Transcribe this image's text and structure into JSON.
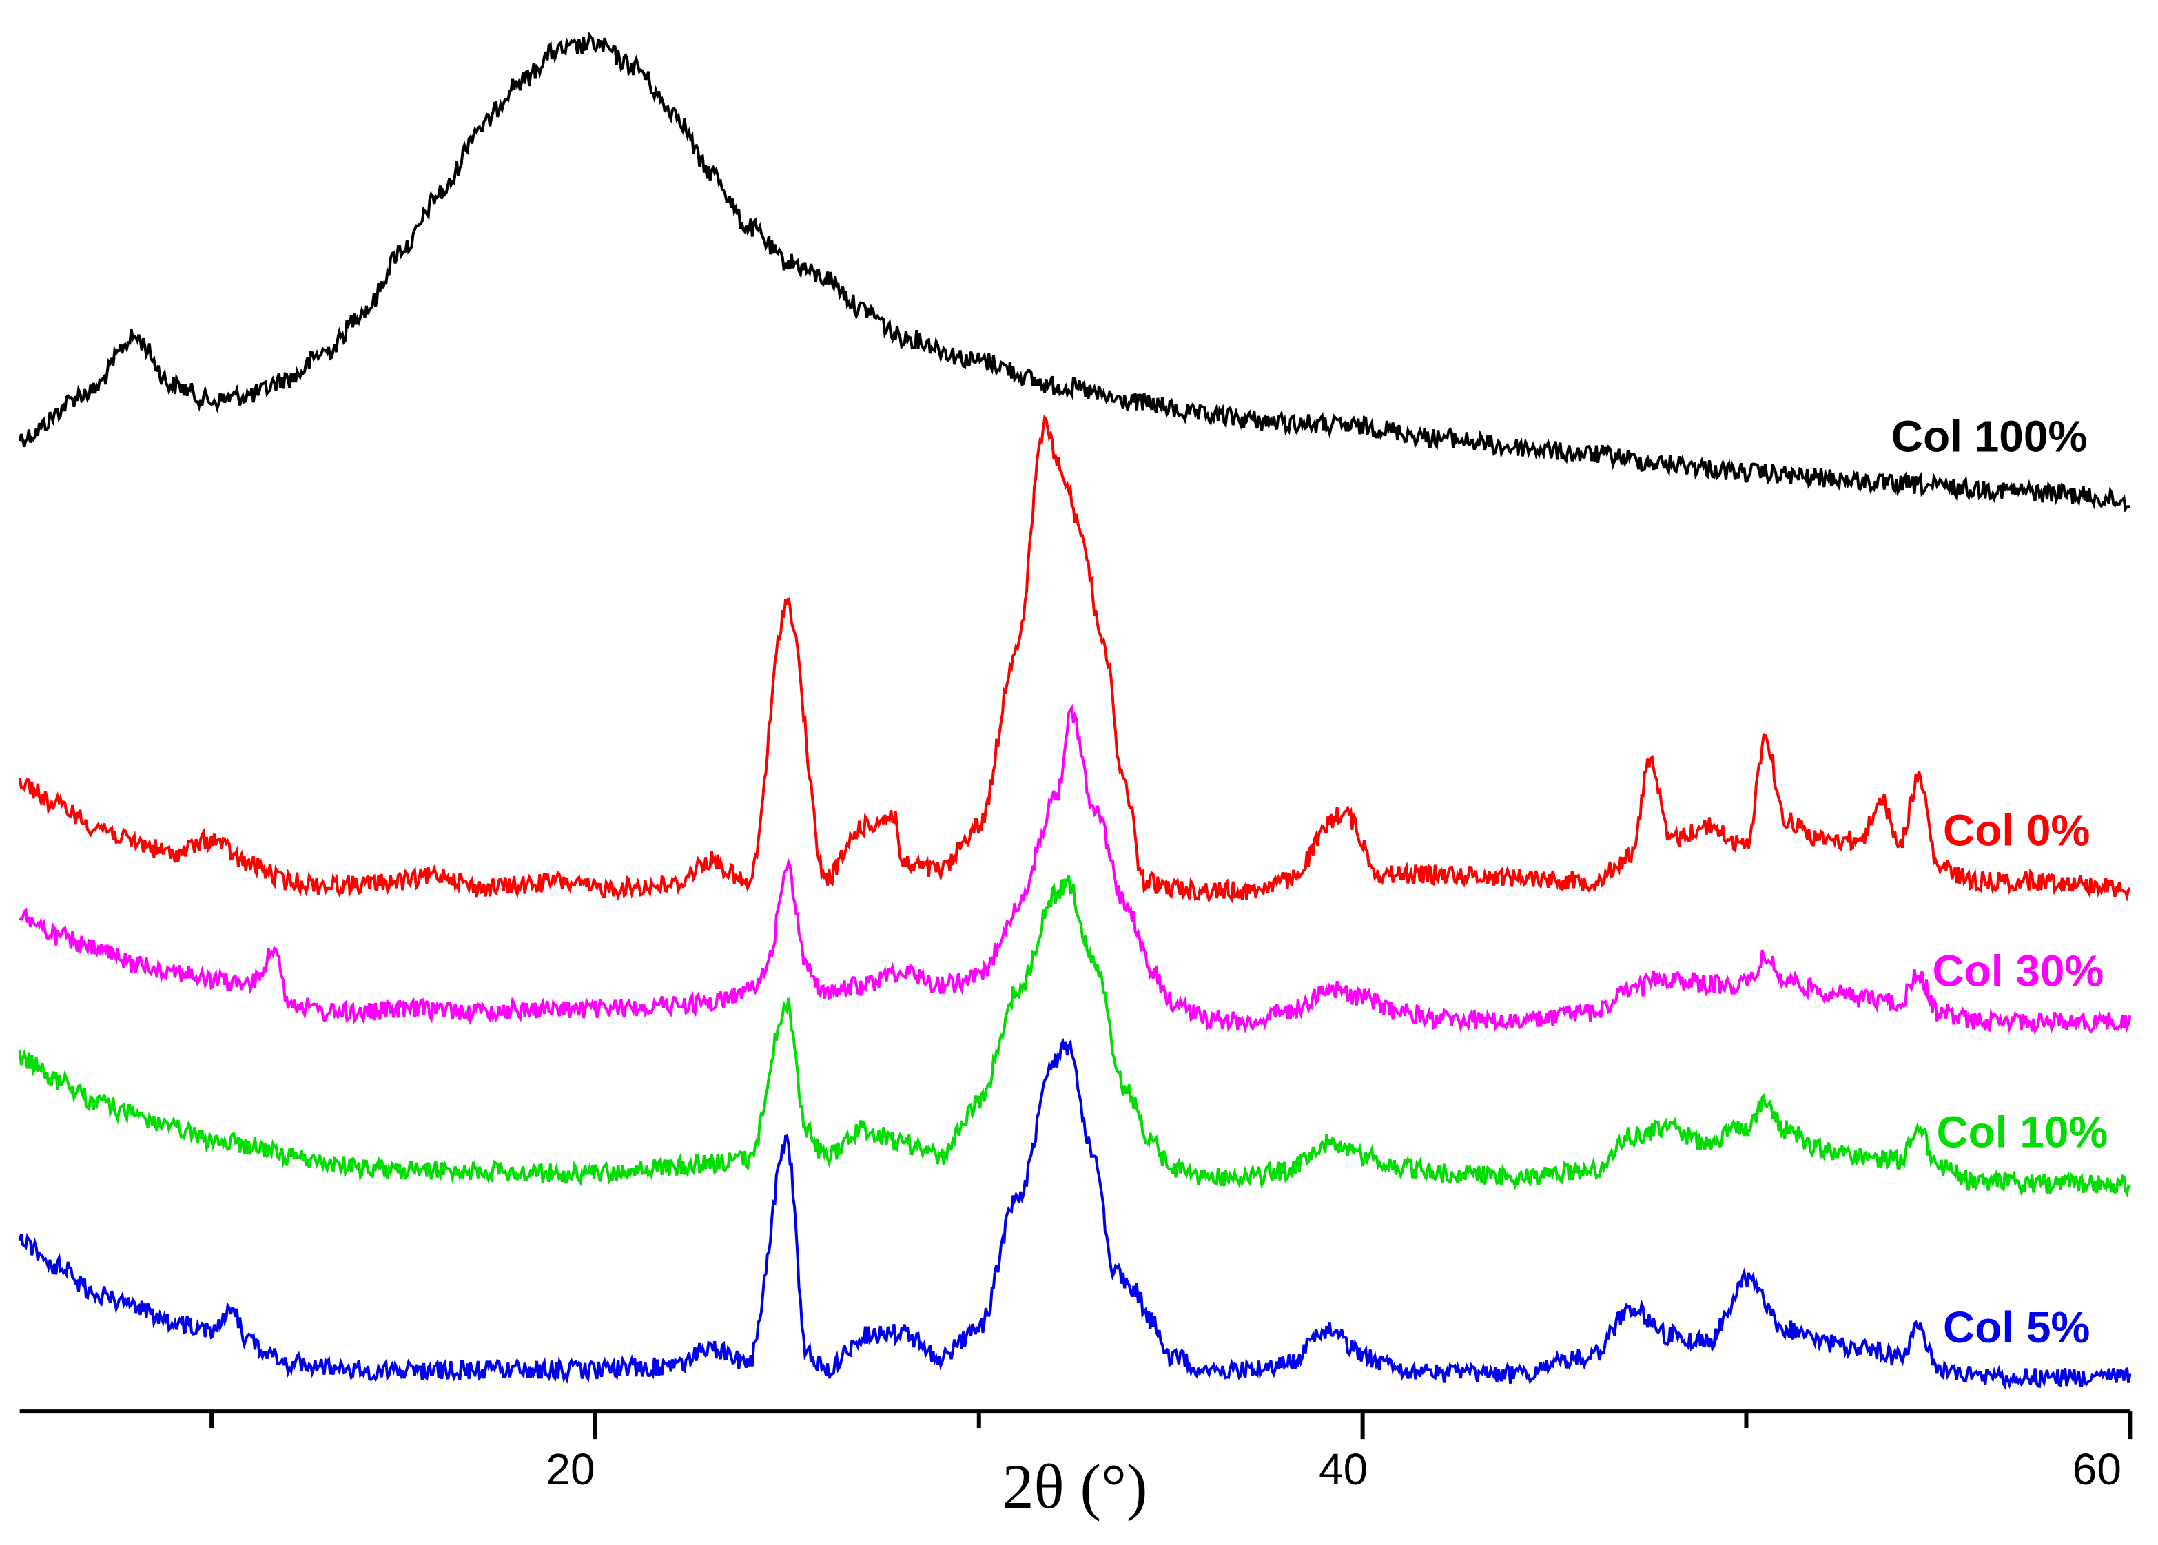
{
  "chart_data": {
    "type": "line",
    "title": "",
    "xlabel": "2θ (°)",
    "ylabel": "",
    "xlim": [
      5,
      60
    ],
    "x_ticks_major": [
      20,
      40,
      60
    ],
    "x_ticks_minor": [
      10,
      30,
      50
    ],
    "x_tick_labels": [
      "20",
      "40",
      "60"
    ],
    "grid": false,
    "legend": "inline labels at right end of each trace",
    "series": [
      {
        "name": "Col 100%",
        "color": "#000000",
        "peaks": [
          [
            5,
            318
          ],
          [
            6.8,
            285
          ],
          [
            8,
            245
          ],
          [
            9,
            280
          ],
          [
            10,
            291
          ],
          [
            11,
            287
          ],
          [
            12,
            275
          ],
          [
            13,
            255
          ],
          [
            14,
            225
          ],
          [
            15,
            180
          ],
          [
            16,
            140
          ],
          [
            17,
            92
          ],
          [
            18,
            60
          ],
          [
            19,
            37
          ],
          [
            20,
            32
          ],
          [
            21,
            48
          ],
          [
            22,
            80
          ],
          [
            23,
            125
          ],
          [
            24,
            165
          ],
          [
            25,
            190
          ],
          [
            26,
            202
          ],
          [
            27,
            225
          ],
          [
            28,
            245
          ],
          [
            30,
            262
          ],
          [
            32,
            280
          ],
          [
            34,
            292
          ],
          [
            36,
            302
          ],
          [
            38,
            307
          ],
          [
            40,
            310
          ],
          [
            42,
            318
          ],
          [
            44,
            325
          ],
          [
            46,
            330
          ],
          [
            48,
            337
          ],
          [
            50,
            343
          ],
          [
            52,
            347
          ],
          [
            54,
            352
          ],
          [
            56,
            355
          ],
          [
            58,
            358
          ],
          [
            60,
            364
          ]
        ],
        "label": "Col 100%"
      },
      {
        "name": "Col 0%",
        "color": "#ff0000",
        "peaks": [
          [
            5,
            568
          ],
          [
            6,
            585
          ],
          [
            7,
            600
          ],
          [
            8,
            612
          ],
          [
            9,
            620
          ],
          [
            10,
            610
          ],
          [
            11,
            628
          ],
          [
            12,
            640
          ],
          [
            13,
            643
          ],
          [
            14,
            642
          ],
          [
            15,
            640
          ],
          [
            16,
            635
          ],
          [
            17,
            645
          ],
          [
            18,
            643
          ],
          [
            19,
            640
          ],
          [
            20,
            645
          ],
          [
            22,
            643
          ],
          [
            23,
            625
          ],
          [
            24,
            642
          ],
          [
            25,
            438
          ],
          [
            26,
            638
          ],
          [
            27,
            600
          ],
          [
            27.8,
            592
          ],
          [
            28,
            628
          ],
          [
            29,
            632
          ],
          [
            30,
            600
          ],
          [
            31,
            470
          ],
          [
            31.7,
            310
          ],
          [
            32.2,
            345
          ],
          [
            32.6,
            380
          ],
          [
            33.2,
            460
          ],
          [
            33.8,
            570
          ],
          [
            34.3,
            640
          ],
          [
            35,
            645
          ],
          [
            36,
            647
          ],
          [
            37,
            647
          ],
          [
            38,
            640
          ],
          [
            39.5,
            590
          ],
          [
            40.5,
            635
          ],
          [
            42,
            635
          ],
          [
            44,
            637
          ],
          [
            46,
            640
          ],
          [
            47,
            622
          ],
          [
            47.5,
            550
          ],
          [
            48,
            610
          ],
          [
            49,
            600
          ],
          [
            50,
            615
          ],
          [
            50.5,
            535
          ],
          [
            51,
            595
          ],
          [
            52,
            610
          ],
          [
            53,
            610
          ],
          [
            53.5,
            580
          ],
          [
            54,
            612
          ],
          [
            54.5,
            565
          ],
          [
            55,
            630
          ],
          [
            56,
            640
          ],
          [
            58,
            640
          ],
          [
            60,
            645
          ]
        ],
        "label": "Col 0%"
      },
      {
        "name": "Col 30%",
        "color": "#ff00ff",
        "peaks": [
          [
            5,
            665
          ],
          [
            6,
            680
          ],
          [
            7,
            690
          ],
          [
            8,
            700
          ],
          [
            9,
            705
          ],
          [
            10,
            712
          ],
          [
            11,
            715
          ],
          [
            11.7,
            690
          ],
          [
            12,
            728
          ],
          [
            13,
            735
          ],
          [
            14,
            735
          ],
          [
            15,
            733
          ],
          [
            16,
            733
          ],
          [
            17,
            735
          ],
          [
            18,
            733
          ],
          [
            20,
            733
          ],
          [
            22,
            730
          ],
          [
            23,
            728
          ],
          [
            24,
            720
          ],
          [
            24.5,
            700
          ],
          [
            25,
            630
          ],
          [
            25.5,
            700
          ],
          [
            26,
            722
          ],
          [
            27,
            715
          ],
          [
            28,
            705
          ],
          [
            29,
            715
          ],
          [
            30,
            710
          ],
          [
            31,
            660
          ],
          [
            32,
            580
          ],
          [
            32.4,
            520
          ],
          [
            33,
            585
          ],
          [
            33.8,
            655
          ],
          [
            34.5,
            705
          ],
          [
            35,
            727
          ],
          [
            36,
            740
          ],
          [
            37,
            742
          ],
          [
            38,
            735
          ],
          [
            39.2,
            718
          ],
          [
            40,
            725
          ],
          [
            41,
            735
          ],
          [
            42,
            740
          ],
          [
            44,
            742
          ],
          [
            46,
            735
          ],
          [
            47,
            720
          ],
          [
            47.8,
            710
          ],
          [
            49,
            715
          ],
          [
            50,
            715
          ],
          [
            50.5,
            695
          ],
          [
            51,
            712
          ],
          [
            52,
            720
          ],
          [
            53,
            725
          ],
          [
            54,
            728
          ],
          [
            54.5,
            708
          ],
          [
            55,
            735
          ],
          [
            56,
            742
          ],
          [
            58,
            742
          ],
          [
            60,
            742
          ]
        ],
        "label": "Col 30%"
      },
      {
        "name": "Col 10%",
        "color": "#00dd00",
        "peaks": [
          [
            5,
            768
          ],
          [
            6,
            785
          ],
          [
            7,
            800
          ],
          [
            8,
            810
          ],
          [
            9,
            820
          ],
          [
            10,
            828
          ],
          [
            11,
            832
          ],
          [
            12,
            840
          ],
          [
            13,
            845
          ],
          [
            14,
            848
          ],
          [
            15,
            850
          ],
          [
            16,
            850
          ],
          [
            17,
            850
          ],
          [
            18,
            852
          ],
          [
            20,
            852
          ],
          [
            22,
            848
          ],
          [
            23,
            845
          ],
          [
            24,
            842
          ],
          [
            25,
            730
          ],
          [
            25.5,
            820
          ],
          [
            26,
            840
          ],
          [
            27,
            820
          ],
          [
            28,
            830
          ],
          [
            29,
            840
          ],
          [
            30,
            800
          ],
          [
            31,
            720
          ],
          [
            32,
            650
          ],
          [
            32.3,
            640
          ],
          [
            33,
            700
          ],
          [
            33.8,
            790
          ],
          [
            34.5,
            830
          ],
          [
            35,
            848
          ],
          [
            36,
            855
          ],
          [
            37,
            855
          ],
          [
            38,
            850
          ],
          [
            39.2,
            830
          ],
          [
            40,
            840
          ],
          [
            41,
            848
          ],
          [
            42,
            852
          ],
          [
            44,
            855
          ],
          [
            46,
            850
          ],
          [
            47,
            825
          ],
          [
            48,
            820
          ],
          [
            49,
            830
          ],
          [
            50,
            818
          ],
          [
            50.5,
            800
          ],
          [
            51,
            820
          ],
          [
            52,
            835
          ],
          [
            53,
            840
          ],
          [
            54,
            842
          ],
          [
            54.5,
            820
          ],
          [
            55,
            848
          ],
          [
            56,
            858
          ],
          [
            58,
            860
          ],
          [
            60,
            860
          ]
        ],
        "label": "Col 10%"
      },
      {
        "name": "Col 5%",
        "color": "#0000ee",
        "peaks": [
          [
            5,
            900
          ],
          [
            6,
            920
          ],
          [
            7,
            940
          ],
          [
            8,
            950
          ],
          [
            9,
            960
          ],
          [
            10,
            965
          ],
          [
            10.5,
            950
          ],
          [
            11,
            975
          ],
          [
            12,
            990
          ],
          [
            13,
            992
          ],
          [
            14,
            995
          ],
          [
            16,
            995
          ],
          [
            18,
            995
          ],
          [
            20,
            995
          ],
          [
            22,
            992
          ],
          [
            23,
            980
          ],
          [
            24,
            990
          ],
          [
            25,
            830
          ],
          [
            25.5,
            980
          ],
          [
            26,
            995
          ],
          [
            27,
            970
          ],
          [
            28,
            968
          ],
          [
            29,
            985
          ],
          [
            30,
            965
          ],
          [
            31,
            870
          ],
          [
            32,
            770
          ],
          [
            32.3,
            760
          ],
          [
            33,
            840
          ],
          [
            33.5,
            920
          ],
          [
            34,
            935
          ],
          [
            34.5,
            960
          ],
          [
            35,
            985
          ],
          [
            36,
            995
          ],
          [
            37,
            995
          ],
          [
            38,
            990
          ],
          [
            39.2,
            965
          ],
          [
            40,
            985
          ],
          [
            41,
            995
          ],
          [
            42,
            998
          ],
          [
            44,
            998
          ],
          [
            46,
            985
          ],
          [
            47,
            950
          ],
          [
            48,
            970
          ],
          [
            49,
            975
          ],
          [
            50,
            930
          ],
          [
            51,
            965
          ],
          [
            52,
            975
          ],
          [
            53,
            980
          ],
          [
            54,
            985
          ],
          [
            54.5,
            965
          ],
          [
            55,
            995
          ],
          [
            56,
            1000
          ],
          [
            58,
            1000
          ],
          [
            60,
            1000
          ]
        ],
        "label": "Col 5%"
      }
    ]
  }
}
